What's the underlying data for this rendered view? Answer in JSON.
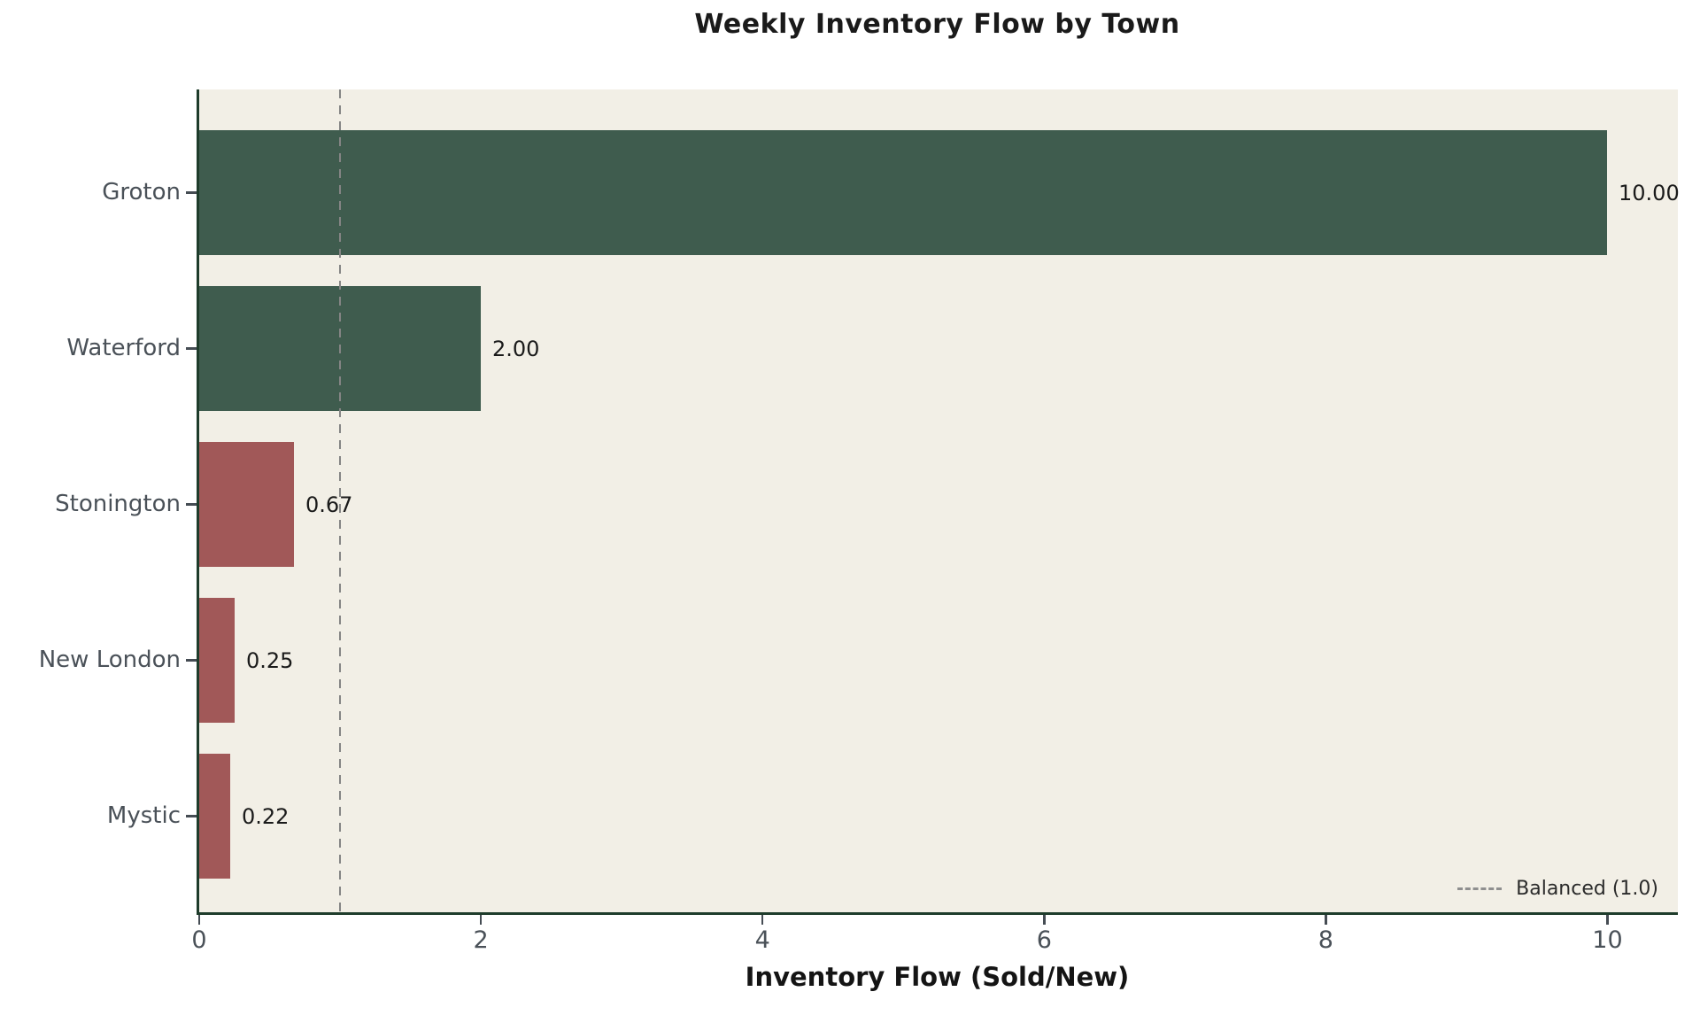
{
  "chart_data": {
    "type": "bar",
    "orientation": "horizontal",
    "title": "Weekly Inventory Flow by Town",
    "xlabel": "Inventory Flow (Sold/New)",
    "categories": [
      "Groton",
      "Waterford",
      "Stonington",
      "New London",
      "Mystic"
    ],
    "values": [
      10.0,
      2.0,
      0.67,
      0.25,
      0.22
    ],
    "value_labels": [
      "10.00",
      "2.00",
      "0.67",
      "0.25",
      "0.22"
    ],
    "bar_colors": [
      "#3F5C4E",
      "#3F5C4E",
      "#A15858",
      "#A15858",
      "#A15858"
    ],
    "x_tick_values": [
      0,
      2,
      4,
      6,
      8,
      10
    ],
    "x_tick_labels": [
      "0",
      "2",
      "4",
      "6",
      "8",
      "10"
    ],
    "xlim": [
      0,
      10.5
    ],
    "grid": false,
    "reference_line": {
      "value": 1.0,
      "style": "dashed",
      "color": "#858585"
    },
    "legend": {
      "position": "lower right",
      "entries": [
        {
          "label": "Balanced (1.0)",
          "marker": "dashed-line"
        }
      ]
    },
    "colors": {
      "sell_through_high": "#3F5C4E",
      "sell_through_low": "#A15858",
      "plot_background": "#F2EFE6",
      "figure_background": "#FFFFFF",
      "axis_spine": "#1E3C2B"
    }
  }
}
